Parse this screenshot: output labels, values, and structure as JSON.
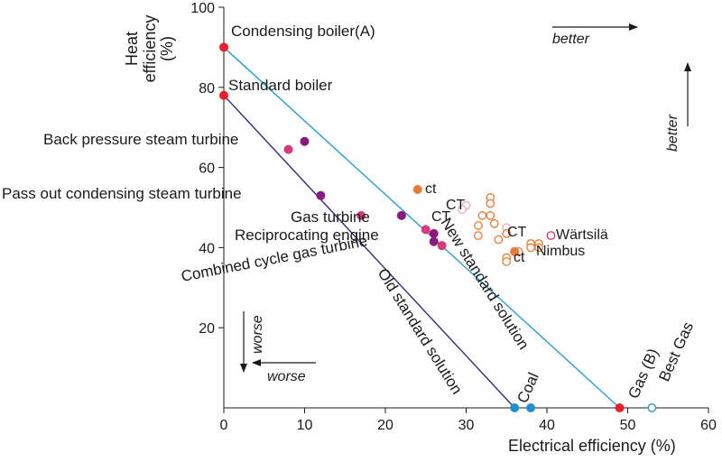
{
  "chart_data": {
    "type": "scatter",
    "title": "",
    "xlabel": "Electrical efficiency (%)",
    "ylabel": "Heat efficiency (%)",
    "ylabel_lines": [
      "Heat",
      "efficiency",
      "(%)"
    ],
    "xlim": [
      0,
      60
    ],
    "ylim": [
      0,
      100
    ],
    "x_ticks": [
      0,
      10,
      20,
      30,
      40,
      50,
      60
    ],
    "y_ticks": [
      20,
      40,
      60,
      80,
      100
    ],
    "grid": false,
    "colors": {
      "red": "#e8202a",
      "purple": "#8b1a7e",
      "magenta": "#d63a7a",
      "orange": "#ea7a35",
      "blue": "#1f8fd0",
      "line_new": "#2a9bd0",
      "line_old": "#352a7a",
      "pink_open": "#f0a6c0",
      "wartsila": "#d42a7a"
    },
    "lines": [
      {
        "name": "New standard solution",
        "x": [
          0,
          49
        ],
        "y": [
          90,
          0
        ],
        "color": "line_new"
      },
      {
        "name": "Old standard solution",
        "x": [
          0,
          36
        ],
        "y": [
          78,
          0
        ],
        "color": "line_old"
      }
    ],
    "filled_points": [
      {
        "x": 0,
        "y": 90,
        "color": "red"
      },
      {
        "x": 0,
        "y": 78,
        "color": "red"
      },
      {
        "x": 10,
        "y": 66.5,
        "color": "purple"
      },
      {
        "x": 8,
        "y": 64.5,
        "color": "magenta"
      },
      {
        "x": 12,
        "y": 53,
        "color": "purple"
      },
      {
        "x": 24,
        "y": 54.5,
        "color": "orange"
      },
      {
        "x": 22,
        "y": 48,
        "color": "purple"
      },
      {
        "x": 17,
        "y": 48,
        "color": "magenta"
      },
      {
        "x": 25,
        "y": 44.5,
        "color": "magenta"
      },
      {
        "x": 26,
        "y": 43.5,
        "color": "purple"
      },
      {
        "x": 26,
        "y": 41.5,
        "color": "purple"
      },
      {
        "x": 27,
        "y": 40.5,
        "color": "magenta"
      },
      {
        "x": 36,
        "y": 39,
        "color": "orange"
      },
      {
        "x": 36,
        "y": 0,
        "color": "blue"
      },
      {
        "x": 38,
        "y": 0,
        "color": "blue"
      },
      {
        "x": 49,
        "y": 0,
        "color": "red"
      }
    ],
    "open_points": [
      {
        "x": 30,
        "y": 50.5,
        "color": "pink_open"
      },
      {
        "x": 29.5,
        "y": 49.5,
        "color": "pink_open"
      },
      {
        "x": 32,
        "y": 48,
        "color": "orange"
      },
      {
        "x": 33,
        "y": 52.5,
        "color": "orange"
      },
      {
        "x": 33,
        "y": 51,
        "color": "orange"
      },
      {
        "x": 33,
        "y": 48,
        "color": "orange"
      },
      {
        "x": 33.5,
        "y": 46,
        "color": "orange"
      },
      {
        "x": 31.5,
        "y": 45.5,
        "color": "orange"
      },
      {
        "x": 31.5,
        "y": 43,
        "color": "orange"
      },
      {
        "x": 34,
        "y": 42,
        "color": "orange"
      },
      {
        "x": 35,
        "y": 45,
        "color": "pink_open"
      },
      {
        "x": 35,
        "y": 43.5,
        "color": "orange"
      },
      {
        "x": 38,
        "y": 41,
        "color": "orange"
      },
      {
        "x": 38,
        "y": 40,
        "color": "orange"
      },
      {
        "x": 39,
        "y": 41,
        "color": "orange"
      },
      {
        "x": 39,
        "y": 40,
        "color": "orange"
      },
      {
        "x": 36.5,
        "y": 39,
        "color": "orange"
      },
      {
        "x": 35,
        "y": 37.5,
        "color": "orange"
      },
      {
        "x": 35,
        "y": 36.5,
        "color": "orange"
      },
      {
        "x": 40.5,
        "y": 43,
        "color": "wartsila"
      },
      {
        "x": 53,
        "y": 0,
        "color": "blue"
      }
    ],
    "annotations": {
      "condensing_boiler": "Condensing boiler(A)",
      "standard_boiler": "Standard boiler",
      "back_pressure": "Back pressure steam turbine",
      "pass_out": "Pass out condensing steam turbine",
      "gas_turbine": "Gas turbine",
      "reciprocating": "Reciprocating engine",
      "combined_cycle": "Combined cycle gas turbine",
      "new_standard": "New standard solution",
      "old_standard": "Old standard solution",
      "coal": "Coal",
      "gas_b": "Gas (B)",
      "best_gas": "Best Gas",
      "ct_orange": "ct",
      "ct_upper": "CT",
      "ct_mid": "CT",
      "ct_right": "CT",
      "ct_lower": "ct",
      "wartsila": "Wärtsilä",
      "nimbus": "Nimbus",
      "better_x": "better",
      "better_y": "better",
      "worse_x": "worse",
      "worse_y": "worse"
    }
  }
}
